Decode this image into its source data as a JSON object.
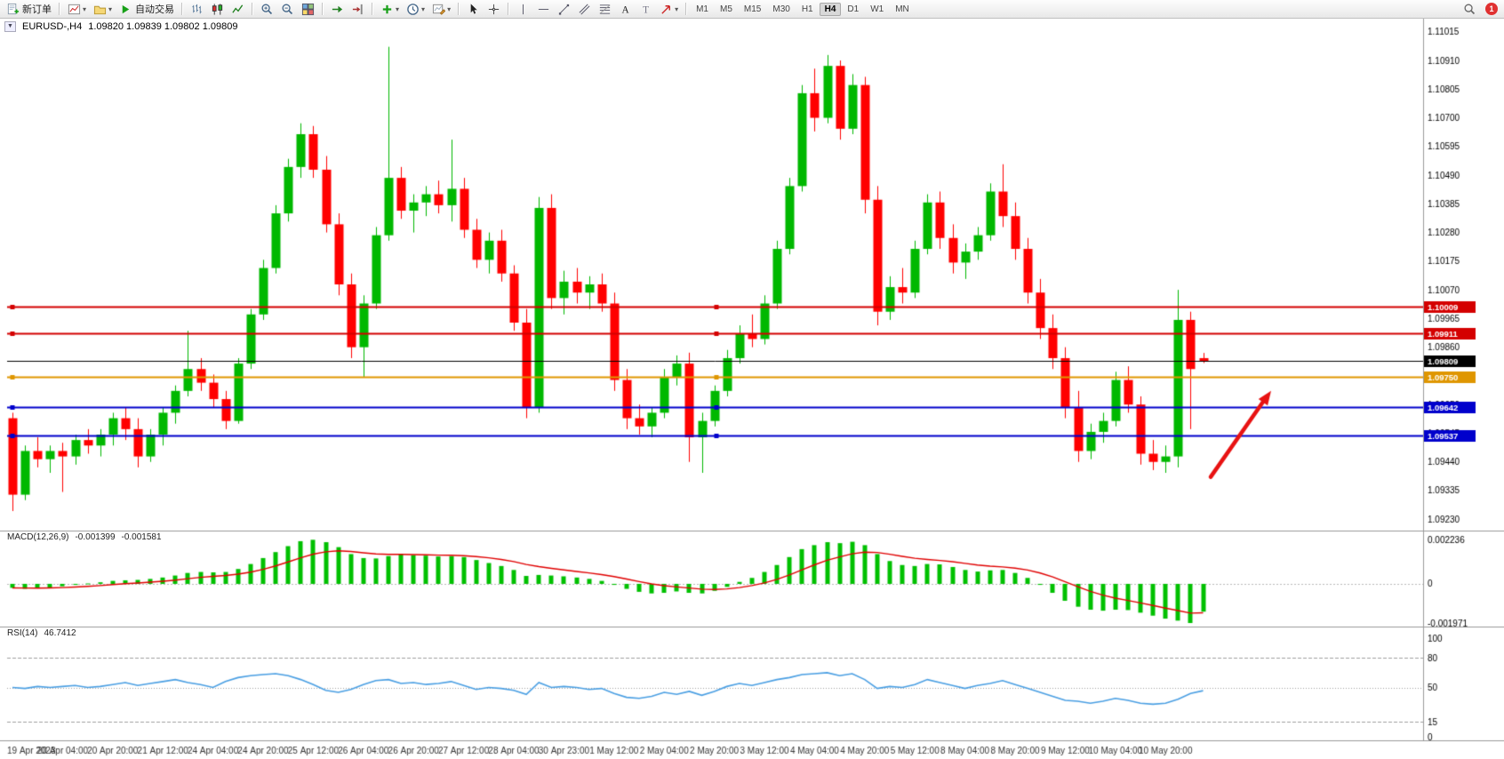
{
  "toolbar": {
    "new_order": "新订单",
    "auto_trading": "自动交易",
    "timeframes": [
      "M1",
      "M5",
      "M15",
      "M30",
      "H1",
      "H4",
      "D1",
      "W1",
      "MN"
    ],
    "active_timeframe": "H4",
    "notification_count": "1",
    "icons": [
      "new-order-icon",
      "new-chart-icon",
      "profiles-icon",
      "auto-trading-icon",
      "bar-chart-icon",
      "candlestick-chart-icon",
      "line-chart-icon",
      "zoom-in-icon",
      "zoom-out-icon",
      "tile-windows-icon",
      "auto-scroll-icon",
      "chart-shift-icon",
      "indicators-icon",
      "periods-icon",
      "templates-icon",
      "cursor-icon",
      "crosshair-icon",
      "vertical-line-icon",
      "horizontal-line-icon",
      "trendline-icon",
      "channel-icon",
      "fibonacci-icon",
      "text-icon",
      "label-icon",
      "arrows-icon",
      "search-icon",
      "notification-badge"
    ]
  },
  "chart": {
    "title": "EURUSD-,H4",
    "ohlc_text": "1.09820 1.09839 1.09802 1.09809",
    "price_ticks": [
      "1.11015",
      "1.10910",
      "1.10805",
      "1.10700",
      "1.10595",
      "1.10490",
      "1.10385",
      "1.10280",
      "1.10175",
      "1.10070",
      "1.09965",
      "1.09860",
      "1.09755",
      "1.09650",
      "1.09545",
      "1.09440",
      "1.09335",
      "1.09230"
    ],
    "time_labels": [
      "19 Apr 2023",
      "20 Apr 04:00",
      "20 Apr 20:00",
      "21 Apr 12:00",
      "24 Apr 04:00",
      "24 Apr 20:00",
      "25 Apr 12:00",
      "26 Apr 04:00",
      "26 Apr 20:00",
      "27 Apr 12:00",
      "28 Apr 04:00",
      "30 Apr 23:00",
      "1 May 12:00",
      "2 May 04:00",
      "2 May 20:00",
      "3 May 12:00",
      "4 May 04:00",
      "4 May 20:00",
      "5 May 12:00",
      "8 May 04:00",
      "8 May 20:00",
      "9 May 12:00",
      "10 May 04:00",
      "10 May 20:00"
    ],
    "hlines": [
      {
        "price": 1.10009,
        "label": "1.10009",
        "color": "#d40000",
        "style": "line"
      },
      {
        "price": 1.09911,
        "label": "1.09911",
        "color": "#d40000",
        "style": "line"
      },
      {
        "price": 1.09809,
        "label": "1.09809",
        "color": "#000000",
        "style": "bid"
      },
      {
        "price": 1.0975,
        "label": "1.09750",
        "color": "#df9600",
        "style": "line"
      },
      {
        "price": 1.09642,
        "label": "1.09642",
        "color": "#0000cc",
        "style": "line"
      },
      {
        "price": 1.09537,
        "label": "1.09537",
        "color": "#0000cc",
        "style": "line"
      }
    ],
    "arrow": {
      "from_price": 1.09385,
      "to_price": 1.097,
      "color": "#e81212"
    }
  },
  "macd": {
    "title": "MACD(12,26,9)",
    "value_main": "-0.001399",
    "value_signal": "-0.001581",
    "scale": [
      "0.002236",
      "0",
      "-0.001971"
    ]
  },
  "rsi": {
    "title": "RSI(14)",
    "value": "46.7412",
    "levels": [
      "100",
      "80",
      "50",
      "15",
      "0"
    ]
  },
  "chart_data": {
    "type": "candlestick",
    "symbol": "EURUSD",
    "timeframe": "H4",
    "up_color": "#00b800",
    "down_color": "#ff0000",
    "macd_color": "#00c000",
    "signal_color": "#e00000",
    "rsi_color": "#4a9fe3",
    "candles": [
      [
        1.096,
        1.0962,
        1.0926,
        1.0932
      ],
      [
        1.0932,
        1.095,
        1.093,
        1.0948
      ],
      [
        1.0948,
        1.0953,
        1.0942,
        1.0945
      ],
      [
        1.0945,
        1.095,
        1.094,
        1.0948
      ],
      [
        1.0948,
        1.0951,
        1.0933,
        1.0946
      ],
      [
        1.0946,
        1.0954,
        1.0943,
        1.0952
      ],
      [
        1.0952,
        1.0956,
        1.0947,
        1.095
      ],
      [
        1.095,
        1.0956,
        1.0946,
        1.0954
      ],
      [
        1.0954,
        1.0962,
        1.095,
        1.096
      ],
      [
        1.096,
        1.0964,
        1.0952,
        1.0956
      ],
      [
        1.0956,
        1.096,
        1.0942,
        1.0946
      ],
      [
        1.0946,
        1.0956,
        1.0944,
        1.0954
      ],
      [
        1.0954,
        1.0964,
        1.095,
        1.0962
      ],
      [
        1.0962,
        1.0972,
        1.0958,
        1.097
      ],
      [
        1.097,
        1.0992,
        1.0968,
        1.0978
      ],
      [
        1.0978,
        1.0982,
        1.097,
        1.0973
      ],
      [
        1.0973,
        1.0976,
        1.0964,
        1.0967
      ],
      [
        1.0967,
        1.097,
        1.0956,
        1.0959
      ],
      [
        1.0959,
        1.0982,
        1.0958,
        1.098
      ],
      [
        1.098,
        1.1,
        1.0978,
        1.0998
      ],
      [
        1.0998,
        1.1018,
        1.0996,
        1.1015
      ],
      [
        1.1015,
        1.1038,
        1.1013,
        1.1035
      ],
      [
        1.1035,
        1.1055,
        1.1032,
        1.1052
      ],
      [
        1.1052,
        1.1068,
        1.1048,
        1.1064
      ],
      [
        1.1064,
        1.1067,
        1.1048,
        1.1051
      ],
      [
        1.1051,
        1.1056,
        1.1028,
        1.1031
      ],
      [
        1.1031,
        1.1035,
        1.1005,
        1.1009
      ],
      [
        1.1009,
        1.1013,
        1.0982,
        1.0986
      ],
      [
        1.0986,
        1.1005,
        1.0975,
        1.1002
      ],
      [
        1.1002,
        1.103,
        1.1,
        1.1027
      ],
      [
        1.1027,
        1.1096,
        1.1025,
        1.1048
      ],
      [
        1.1048,
        1.1052,
        1.1033,
        1.1036
      ],
      [
        1.1036,
        1.1042,
        1.1028,
        1.1039
      ],
      [
        1.1039,
        1.1045,
        1.1034,
        1.1042
      ],
      [
        1.1042,
        1.1047,
        1.1035,
        1.1038
      ],
      [
        1.1038,
        1.1062,
        1.1032,
        1.1044
      ],
      [
        1.1044,
        1.1048,
        1.1026,
        1.1029
      ],
      [
        1.1029,
        1.1033,
        1.1015,
        1.1018
      ],
      [
        1.1018,
        1.1028,
        1.1013,
        1.1025
      ],
      [
        1.1025,
        1.1029,
        1.101,
        1.1013
      ],
      [
        1.1013,
        1.1016,
        1.0992,
        1.0995
      ],
      [
        1.0995,
        1.1,
        1.096,
        1.0964
      ],
      [
        1.0964,
        1.1041,
        1.0962,
        1.1037
      ],
      [
        1.1037,
        1.1042,
        1.1,
        1.1004
      ],
      [
        1.1004,
        1.1014,
        1.0998,
        1.101
      ],
      [
        1.101,
        1.1015,
        1.1002,
        1.1006
      ],
      [
        1.1006,
        1.1012,
        1.1,
        1.1009
      ],
      [
        1.1009,
        1.1013,
        1.0999,
        1.1002
      ],
      [
        1.1002,
        1.1006,
        1.097,
        1.0974
      ],
      [
        1.0974,
        1.0978,
        1.0956,
        1.096
      ],
      [
        1.096,
        1.0965,
        1.0954,
        1.0957
      ],
      [
        1.0957,
        1.0964,
        1.0953,
        1.0962
      ],
      [
        1.0962,
        1.0978,
        1.096,
        1.0975
      ],
      [
        1.0975,
        1.0983,
        1.0972,
        1.098
      ],
      [
        1.098,
        1.0984,
        1.0944,
        1.0953
      ],
      [
        1.0953,
        1.0962,
        1.094,
        1.0959
      ],
      [
        1.0959,
        1.0972,
        1.0957,
        1.097
      ],
      [
        1.097,
        1.0985,
        1.0968,
        1.0982
      ],
      [
        1.0982,
        1.0994,
        1.098,
        1.0991
      ],
      [
        1.0991,
        1.0998,
        1.0986,
        1.0989
      ],
      [
        1.0989,
        1.1005,
        1.0987,
        1.1002
      ],
      [
        1.1002,
        1.1025,
        1.1,
        1.1022
      ],
      [
        1.1022,
        1.1048,
        1.102,
        1.1045
      ],
      [
        1.1045,
        1.1082,
        1.1043,
        1.1079
      ],
      [
        1.1079,
        1.1088,
        1.1065,
        1.107
      ],
      [
        1.107,
        1.1093,
        1.1068,
        1.1089
      ],
      [
        1.1089,
        1.1091,
        1.1062,
        1.1066
      ],
      [
        1.1066,
        1.1086,
        1.1064,
        1.1082
      ],
      [
        1.1082,
        1.1085,
        1.1035,
        1.104
      ],
      [
        1.104,
        1.1045,
        1.0994,
        1.0999
      ],
      [
        1.0999,
        1.1012,
        1.0996,
        1.1008
      ],
      [
        1.1008,
        1.1015,
        1.1002,
        1.1006
      ],
      [
        1.1006,
        1.1025,
        1.1004,
        1.1022
      ],
      [
        1.1022,
        1.1042,
        1.102,
        1.1039
      ],
      [
        1.1039,
        1.1043,
        1.1022,
        1.1026
      ],
      [
        1.1026,
        1.1031,
        1.1013,
        1.1017
      ],
      [
        1.1017,
        1.1024,
        1.1011,
        1.1021
      ],
      [
        1.1021,
        1.103,
        1.1018,
        1.1027
      ],
      [
        1.1027,
        1.1046,
        1.1025,
        1.1043
      ],
      [
        1.1043,
        1.1053,
        1.103,
        1.1034
      ],
      [
        1.1034,
        1.1039,
        1.1018,
        1.1022
      ],
      [
        1.1022,
        1.1026,
        1.1002,
        1.1006
      ],
      [
        1.1006,
        1.1011,
        1.0989,
        1.0993
      ],
      [
        1.0993,
        1.0998,
        1.0978,
        1.0982
      ],
      [
        1.0982,
        1.0986,
        1.096,
        1.0964
      ],
      [
        1.0964,
        1.097,
        1.0944,
        1.0948
      ],
      [
        1.0948,
        1.0958,
        1.0945,
        1.0955
      ],
      [
        1.0955,
        1.0962,
        1.0951,
        1.0959
      ],
      [
        1.0959,
        1.0977,
        1.0957,
        1.0974
      ],
      [
        1.0974,
        1.0979,
        1.0962,
        1.0965
      ],
      [
        1.0965,
        1.0968,
        1.0943,
        1.0947
      ],
      [
        1.0947,
        1.0952,
        1.0941,
        1.0944
      ],
      [
        1.0944,
        1.095,
        1.094,
        1.0946
      ],
      [
        1.0946,
        1.1007,
        1.0942,
        1.0996
      ],
      [
        1.0996,
        1.0999,
        1.0956,
        1.0978
      ],
      [
        1.0982,
        1.09839,
        1.09802,
        1.09809
      ]
    ],
    "macd_histogram": [
      -0.0002,
      -0.00025,
      -0.00022,
      -0.00018,
      -0.00012,
      -5e-05,
      2e-05,
      8e-05,
      0.00015,
      0.00018,
      0.0002,
      0.00025,
      0.00032,
      0.00042,
      0.00055,
      0.0006,
      0.00058,
      0.0006,
      0.00075,
      0.001,
      0.0013,
      0.0016,
      0.0019,
      0.00215,
      0.00222,
      0.0021,
      0.00185,
      0.0015,
      0.0013,
      0.00128,
      0.0014,
      0.00148,
      0.00145,
      0.00142,
      0.00138,
      0.0014,
      0.00135,
      0.0012,
      0.00105,
      0.0009,
      0.0007,
      0.0004,
      0.00045,
      0.00042,
      0.00038,
      0.00032,
      0.00025,
      0.00015,
      -5e-05,
      -0.00025,
      -0.0004,
      -0.00048,
      -0.00045,
      -0.00038,
      -0.00045,
      -0.00048,
      -0.00035,
      -0.00015,
      0.0001,
      0.0003,
      0.0006,
      0.00095,
      0.00135,
      0.00175,
      0.00195,
      0.0021,
      0.00205,
      0.00212,
      0.00195,
      0.0015,
      0.00115,
      0.00095,
      0.0009,
      0.001,
      0.00098,
      0.00085,
      0.0007,
      0.00062,
      0.00068,
      0.0007,
      0.00055,
      0.0003,
      -5e-05,
      -0.00045,
      -0.00085,
      -0.00115,
      -0.0013,
      -0.00135,
      -0.0013,
      -0.00132,
      -0.00145,
      -0.0016,
      -0.00175,
      -0.00185,
      -0.001971,
      -0.001399
    ],
    "rsi": [
      50,
      49,
      51,
      50,
      51,
      52,
      50,
      51,
      53,
      55,
      52,
      54,
      56,
      58,
      55,
      53,
      50,
      56,
      60,
      62,
      63,
      64,
      62,
      58,
      53,
      47,
      45,
      48,
      53,
      57,
      58,
      54,
      55,
      53,
      54,
      56,
      52,
      48,
      50,
      49,
      47,
      43,
      55,
      50,
      51,
      50,
      48,
      49,
      44,
      40,
      39,
      41,
      45,
      43,
      46,
      42,
      46,
      51,
      54,
      52,
      55,
      58,
      60,
      63,
      64,
      65,
      62,
      64,
      58,
      49,
      51,
      50,
      53,
      58,
      55,
      52,
      49,
      52,
      54,
      57,
      53,
      49,
      45,
      41,
      37,
      36,
      34,
      36,
      39,
      37,
      34,
      33,
      34,
      38,
      44,
      46.7412
    ],
    "macd_scale": {
      "max": 0.002236,
      "min": -0.001971
    },
    "rsi_scale": {
      "max": 100,
      "min": 0,
      "levels_dashed": [
        80,
        15
      ],
      "level_dotted": 50
    }
  }
}
